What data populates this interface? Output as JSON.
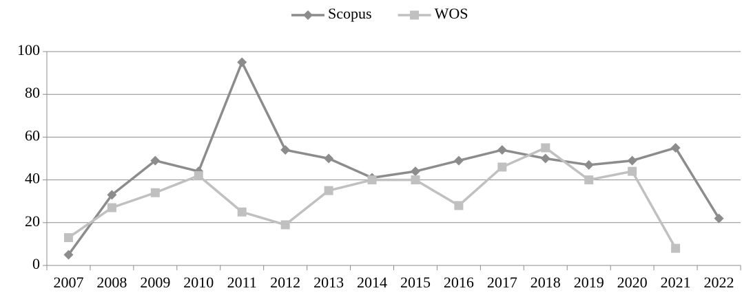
{
  "chart_data": {
    "type": "line",
    "categories": [
      "2007",
      "2008",
      "2009",
      "2010",
      "2011",
      "2012",
      "2013",
      "2014",
      "2015",
      "2016",
      "2017",
      "2018",
      "2019",
      "2020",
      "2021",
      "2022"
    ],
    "series": [
      {
        "name": "Scopus",
        "color": "#8c8c8c",
        "marker": "diamond",
        "values": [
          5,
          33,
          49,
          44,
          95,
          54,
          50,
          41,
          44,
          49,
          54,
          50,
          47,
          49,
          55,
          22
        ]
      },
      {
        "name": "WOS",
        "color": "#c0c0c0",
        "marker": "square",
        "values": [
          13,
          27,
          34,
          42,
          25,
          19,
          35,
          40,
          40,
          28,
          46,
          55,
          40,
          44,
          8,
          null
        ]
      }
    ],
    "ylim": [
      0,
      100
    ],
    "yticks": [
      0,
      20,
      40,
      60,
      80,
      100
    ],
    "grid": true,
    "legend": "top"
  }
}
